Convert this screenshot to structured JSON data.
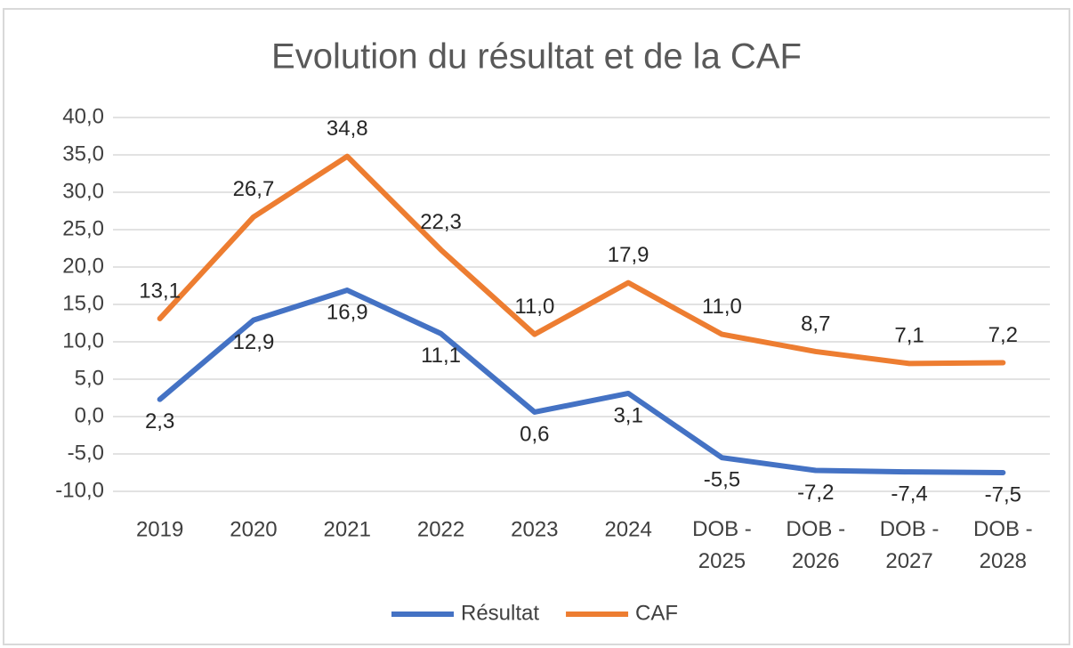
{
  "chart_data": {
    "type": "line",
    "title": "Evolution du résultat et de la CAF",
    "categories": [
      "2019",
      "2020",
      "2021",
      "2022",
      "2023",
      "2024",
      "DOB - 2025",
      "DOB - 2026",
      "DOB - 2027",
      "DOB - 2028"
    ],
    "series": [
      {
        "name": "Résultat",
        "color": "#4472c4",
        "values": [
          2.3,
          12.9,
          16.9,
          11.1,
          0.6,
          3.1,
          -5.5,
          -7.2,
          -7.4,
          -7.5
        ],
        "value_labels": [
          "2,3",
          "12,9",
          "16,9",
          "11,1",
          "0,6",
          "3,1",
          "-5,5",
          "-7,2",
          "-7,4",
          "-7,5"
        ]
      },
      {
        "name": "CAF",
        "color": "#ed7d31",
        "values": [
          13.1,
          26.7,
          34.8,
          22.3,
          11.0,
          17.9,
          11.0,
          8.7,
          7.1,
          7.2
        ],
        "value_labels": [
          "13,1",
          "26,7",
          "34,8",
          "22,3",
          "11,0",
          "17,9",
          "11,0",
          "8,7",
          "7,1",
          "7,2"
        ]
      }
    ],
    "ylim": [
      -10,
      40
    ],
    "yticks": [
      {
        "value": -10,
        "label": "-10,0"
      },
      {
        "value": -5,
        "label": "-5,0"
      },
      {
        "value": 0,
        "label": "0,0"
      },
      {
        "value": 5,
        "label": "5,0"
      },
      {
        "value": 10,
        "label": "10,0"
      },
      {
        "value": 15,
        "label": "15,0"
      },
      {
        "value": 20,
        "label": "20,0"
      },
      {
        "value": 25,
        "label": "25,0"
      },
      {
        "value": 30,
        "label": "30,0"
      },
      {
        "value": 35,
        "label": "35,0"
      },
      {
        "value": 40,
        "label": "40,0"
      }
    ],
    "grid": true,
    "legend": "bottom"
  }
}
